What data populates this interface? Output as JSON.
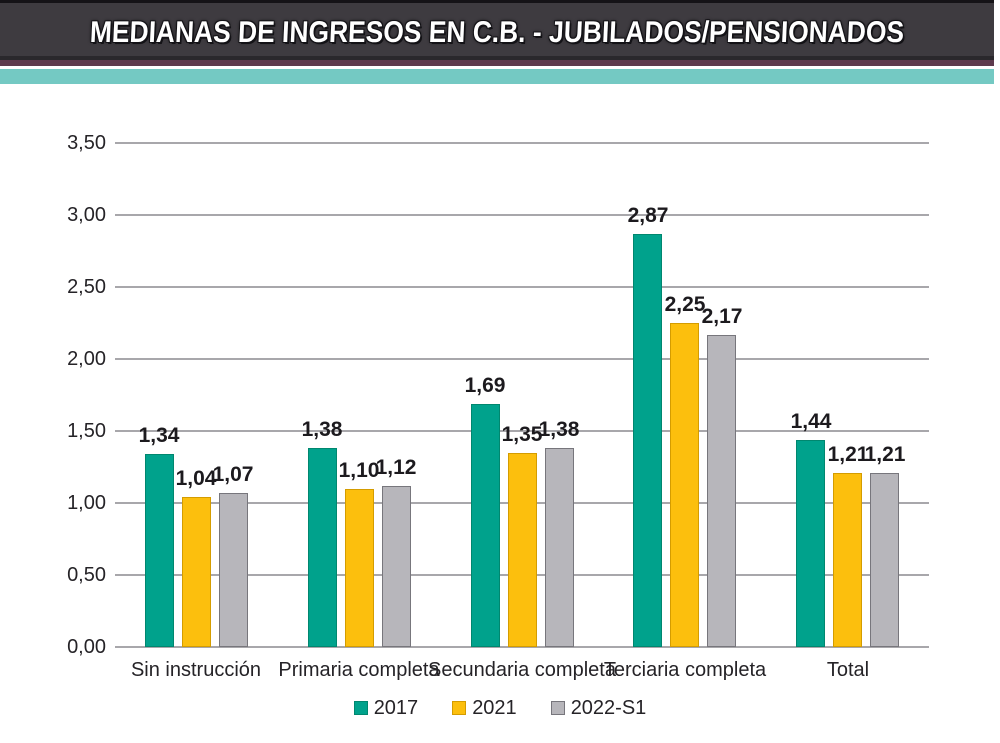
{
  "header": {
    "title": "MEDIANAS DE INGRESOS EN C.B. - JUBILADOS/PENSIONADOS"
  },
  "colors": {
    "header_bg": "#3e3b40",
    "header_top_line": "#151317",
    "strip_dark": "#2a282c",
    "strip_maroon": "#5e3a4d",
    "strip_teal": "#74c9c3",
    "gridline": "#a8a7ab",
    "text": "#252327",
    "series_2017": "#00a28c",
    "series_2017_border": "#00876f",
    "series_2021": "#fcbf0d",
    "series_2021_border": "#d49c00",
    "series_2022s1": "#b7b6bb",
    "series_2022s1_border": "#77767c"
  },
  "chart_data": {
    "type": "bar",
    "title": "MEDIANAS DE INGRESOS EN C.B. - JUBILADOS/PENSIONADOS",
    "categories": [
      "Sin instrucción",
      "Primaria completa",
      "Secundaria completa",
      "Terciaria completa",
      "Total"
    ],
    "series": [
      {
        "name": "2017",
        "color": "#00a28c",
        "border": "#00876f",
        "values": [
          1.34,
          1.38,
          1.69,
          2.87,
          1.44
        ],
        "labels": [
          "1,34",
          "1,38",
          "1,69",
          "2,87",
          "1,44"
        ]
      },
      {
        "name": "2021",
        "color": "#fcbf0d",
        "border": "#d49c00",
        "values": [
          1.04,
          1.1,
          1.35,
          2.25,
          1.21
        ],
        "labels": [
          "1,04",
          "1,10",
          "1,35",
          "2,25",
          "1,21"
        ]
      },
      {
        "name": "2022-S1",
        "color": "#b7b6bb",
        "border": "#77767c",
        "values": [
          1.07,
          1.12,
          1.38,
          2.17,
          1.21
        ],
        "labels": [
          "1,07",
          "1,12",
          "1,38",
          "2,17",
          "1,21"
        ]
      }
    ],
    "yticks": {
      "values": [
        0,
        0.5,
        1,
        1.5,
        2,
        2.5,
        3,
        3.5
      ],
      "labels": [
        "0,00",
        "0,50",
        "1,00",
        "1,50",
        "2,00",
        "2,50",
        "3,00",
        "3,50"
      ]
    },
    "ylim": [
      0,
      3.5
    ],
    "xlabel": "",
    "ylabel": "",
    "grid": true,
    "legend_position": "bottom"
  }
}
